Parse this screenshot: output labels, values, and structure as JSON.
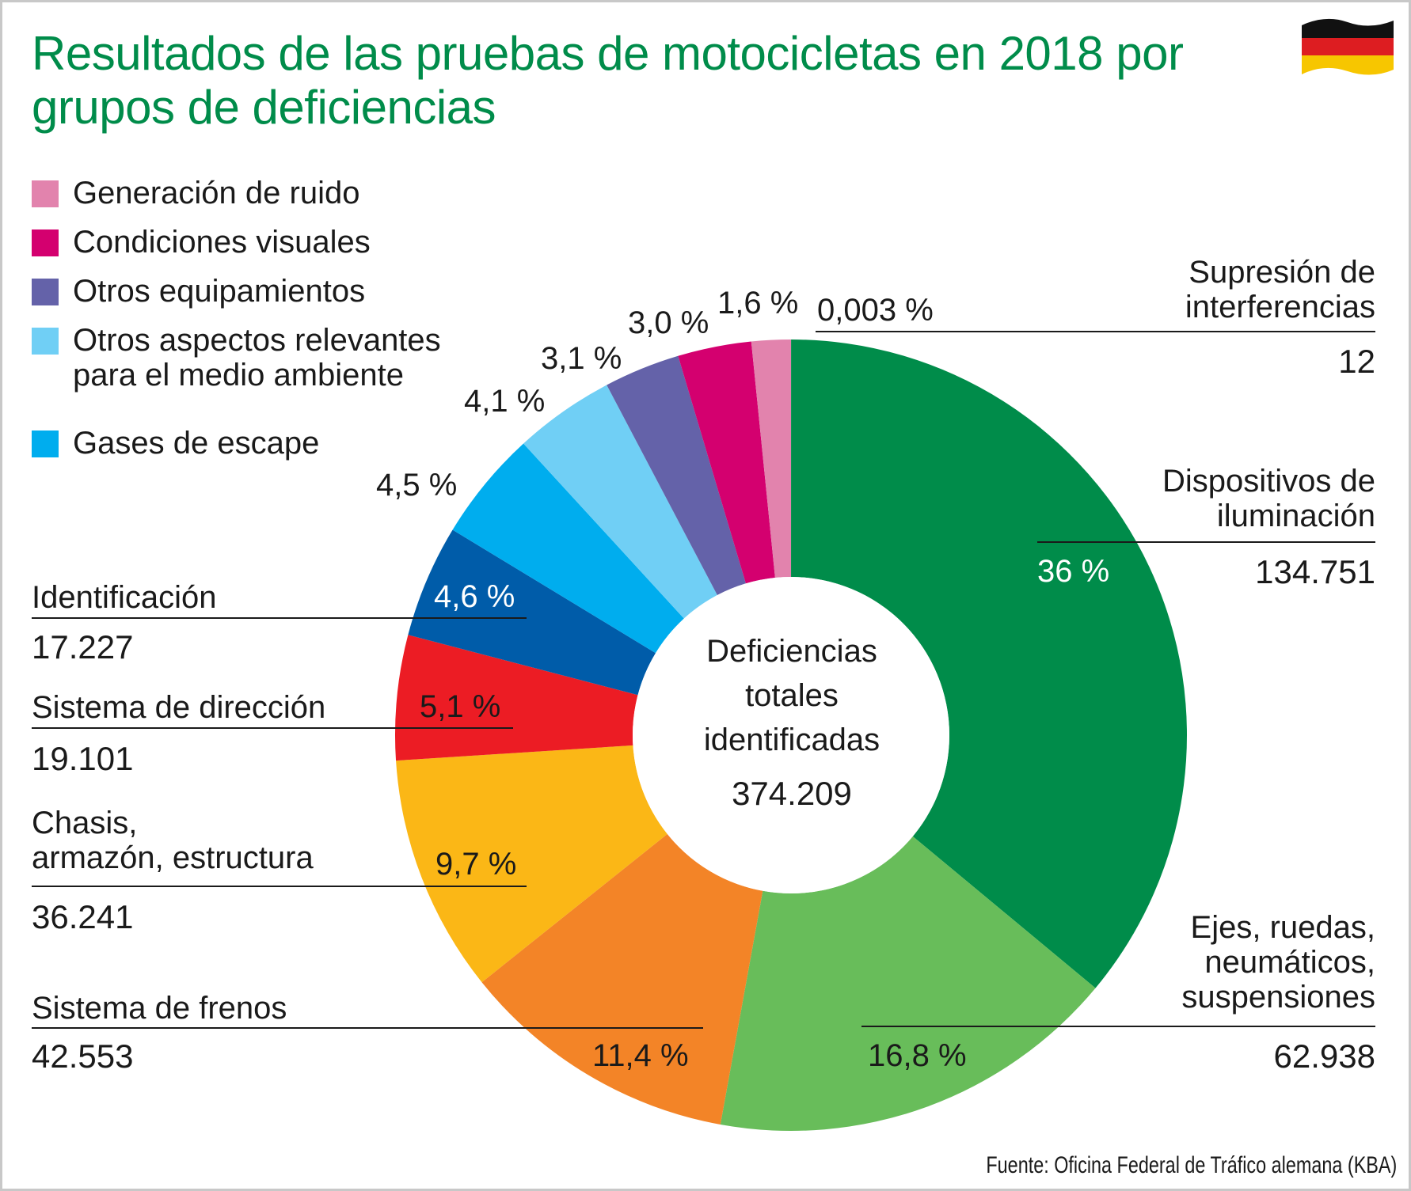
{
  "title": "Resultados de las pruebas de motocicletas en 2018 por grupos de deficiencias",
  "source": "Fuente: Oficina Federal de Tráfico alemana (KBA)",
  "flag_icon": "germany-flag-icon",
  "legend": [
    {
      "label": "Generación de ruido",
      "color": "#e283ad"
    },
    {
      "label": "Condiciones visuales",
      "color": "#d4006f"
    },
    {
      "label": "Otros equipamientos",
      "color": "#6462a9"
    },
    {
      "label_line1": "Otros aspectos relevantes",
      "label_line2": "para el medio ambiente",
      "color": "#70cff5"
    },
    {
      "label": "Gases de escape",
      "color": "#00adee"
    }
  ],
  "center": {
    "line1": "Deficiencias",
    "line2": "totales",
    "line3": "identificadas",
    "value": "374.209"
  },
  "chart_data": {
    "type": "pie",
    "donut": true,
    "title": "Resultados de las pruebas de motocicletas en 2018 por grupos de deficiencias",
    "total": 374209,
    "slices": [
      {
        "name": "Supresión de interferencias",
        "count": 12,
        "count_label": "12",
        "pct_label": "0,003 %",
        "percent": 0.003,
        "color": "#008c4a"
      },
      {
        "name": "Dispositivos de iluminación",
        "count": 134751,
        "count_label": "134.751",
        "pct_label": "36 %",
        "percent": 36,
        "color": "#008c4a"
      },
      {
        "name": "Ejes, ruedas, neumáticos, suspensiones",
        "count": 62938,
        "count_label": "62.938",
        "pct_label": "16,8 %",
        "percent": 16.8,
        "color": "#68bd5a"
      },
      {
        "name": "Sistema de frenos",
        "count": 42553,
        "count_label": "42.553",
        "pct_label": "11,4 %",
        "percent": 11.4,
        "color": "#f38427"
      },
      {
        "name": "Chasis, armazón, estructura",
        "count": 36241,
        "count_label": "36.241",
        "pct_label": "9,7 %",
        "percent": 9.7,
        "color": "#fbb716"
      },
      {
        "name": "Sistema de dirección",
        "count": 19101,
        "count_label": "19.101",
        "pct_label": "5,1 %",
        "percent": 5.1,
        "color": "#ec1c24"
      },
      {
        "name": "Identificación",
        "count": 17227,
        "count_label": "17.227",
        "pct_label": "4,6 %",
        "percent": 4.6,
        "color": "#005ca9"
      },
      {
        "name": "Gases de escape",
        "pct_label": "4,5 %",
        "percent": 4.5,
        "color": "#00adee"
      },
      {
        "name": "Otros aspectos relevantes para el medio ambiente",
        "pct_label": "4,1 %",
        "percent": 4.1,
        "color": "#70cff5"
      },
      {
        "name": "Otros equipamientos",
        "pct_label": "3,1 %",
        "percent": 3.1,
        "color": "#6462a9"
      },
      {
        "name": "Condiciones visuales",
        "pct_label": "3,0 %",
        "percent": 3.0,
        "color": "#d4006f"
      },
      {
        "name": "Generación de ruido",
        "pct_label": "1,6 %",
        "percent": 1.6,
        "color": "#e283ad"
      }
    ]
  },
  "labels": {
    "supresion_line1": "Supresión de",
    "supresion_line2": "interferencias",
    "dispositivos_line1": "Dispositivos de",
    "dispositivos_line2": "iluminación",
    "ejes_line1": "Ejes, ruedas,",
    "ejes_line2": "neumáticos,",
    "ejes_line3": "suspensiones",
    "identificacion": "Identificación",
    "direccion": "Sistema de dirección",
    "chasis_line1": "Chasis,",
    "chasis_line2": "armazón, estructura",
    "frenos": "Sistema de frenos"
  }
}
